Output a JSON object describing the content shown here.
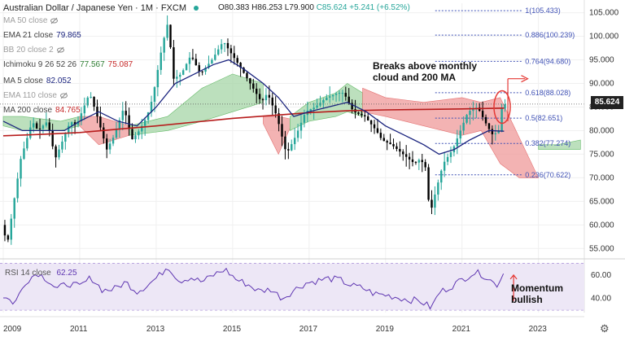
{
  "header": {
    "title": "Australian Dollar / Japanese Yen · 1M · FXCM",
    "ohlc": {
      "o": "O80.383",
      "h": "H86.253",
      "l": "L79.900",
      "c": "C85.624",
      "chg": "+5.241 (+6.52%)"
    }
  },
  "legend": [
    {
      "name": "MA 50 close",
      "value": "",
      "color": "#9e9e9e",
      "hidden": true
    },
    {
      "name": "EMA 21 close",
      "value": "79.865",
      "color": "#1a237e",
      "hidden": false
    },
    {
      "name": "BB 20 close 2",
      "value": "",
      "color": "#9e9e9e",
      "hidden": true
    },
    {
      "name": "Ichimoku 9 26 52 26",
      "value": "77.567  75.087",
      "color": "#2e7d32",
      "value_color2": "#c62828",
      "hidden": false
    },
    {
      "name": "MA 5 close",
      "value": "82.052",
      "color": "#1a237e",
      "hidden": false
    },
    {
      "name": "EMA 110 close",
      "value": "",
      "color": "#9e9e9e",
      "hidden": true
    },
    {
      "name": "MA 200 close",
      "value": "84.765",
      "color": "#c62828",
      "hidden": false
    }
  ],
  "current_price": "85.624",
  "annotations": {
    "breakout": [
      "Breaks above monthly",
      "cloud and 200 MA"
    ],
    "momentum": [
      "Momentum",
      "bullish"
    ]
  },
  "colors": {
    "up": "#26a69a",
    "down": "#000000",
    "cloud_green": "#a5d6a7",
    "cloud_red": "#ef9a9a",
    "ma200": "#b71c1c",
    "ema21": "#1a237e",
    "fib": "#3f51b5",
    "rsi": "#5e35b1",
    "annot_arrow": "#e53935"
  },
  "chart_data": [
    {
      "type": "candlestick",
      "title": "Australian Dollar / Japanese Yen · 1M · FXCM",
      "yaxis_ticks": [
        55,
        60,
        65,
        70,
        75,
        80,
        85,
        90,
        95,
        100,
        105
      ],
      "yaxis_tick_labels": [
        "55.000",
        "60.000",
        "65.000",
        "70.000",
        "75.000",
        "80.000",
        "85.000",
        "90.000",
        "95.000",
        "100.000",
        "105.000"
      ],
      "ylim": [
        53.5,
        107
      ],
      "x_start": 2009.0,
      "x_end": 2024.2,
      "xaxis_ticks": [
        2009,
        2011,
        2013,
        2015,
        2017,
        2019,
        2021,
        2023
      ],
      "price_path": [
        [
          2009.0,
          60
        ],
        [
          2009.15,
          56
        ],
        [
          2009.3,
          64
        ],
        [
          2009.5,
          74
        ],
        [
          2009.8,
          82
        ],
        [
          2009.95,
          80
        ],
        [
          2010.2,
          82
        ],
        [
          2010.4,
          74
        ],
        [
          2010.6,
          78
        ],
        [
          2010.8,
          82
        ],
        [
          2010.95,
          81
        ],
        [
          2011.1,
          84
        ],
        [
          2011.3,
          88
        ],
        [
          2011.5,
          83
        ],
        [
          2011.75,
          76
        ],
        [
          2011.95,
          79
        ],
        [
          2012.2,
          85
        ],
        [
          2012.4,
          78
        ],
        [
          2012.6,
          80
        ],
        [
          2012.8,
          83
        ],
        [
          2012.95,
          87
        ],
        [
          2013.2,
          98
        ],
        [
          2013.35,
          103
        ],
        [
          2013.5,
          91
        ],
        [
          2013.7,
          92
        ],
        [
          2013.95,
          96
        ],
        [
          2014.2,
          92
        ],
        [
          2014.5,
          95
        ],
        [
          2014.8,
          99
        ],
        [
          2014.95,
          97
        ],
        [
          2015.2,
          94
        ],
        [
          2015.5,
          90
        ],
        [
          2015.8,
          86
        ],
        [
          2015.95,
          88
        ],
        [
          2016.2,
          83
        ],
        [
          2016.45,
          75
        ],
        [
          2016.7,
          79
        ],
        [
          2016.95,
          84
        ],
        [
          2017.2,
          85
        ],
        [
          2017.5,
          87
        ],
        [
          2017.8,
          88
        ],
        [
          2017.95,
          88
        ],
        [
          2018.2,
          84
        ],
        [
          2018.5,
          83
        ],
        [
          2018.8,
          80
        ],
        [
          2018.95,
          78
        ],
        [
          2019.2,
          77
        ],
        [
          2019.5,
          75
        ],
        [
          2019.8,
          73
        ],
        [
          2019.95,
          74
        ],
        [
          2020.1,
          72
        ],
        [
          2020.2,
          62
        ],
        [
          2020.35,
          67
        ],
        [
          2020.55,
          73
        ],
        [
          2020.8,
          76
        ],
        [
          2020.95,
          79
        ],
        [
          2021.2,
          84
        ],
        [
          2021.45,
          85
        ],
        [
          2021.7,
          81
        ],
        [
          2021.85,
          79
        ],
        [
          2022.0,
          80
        ],
        [
          2022.1,
          85.6
        ]
      ],
      "series": [
        {
          "name": "MA 200",
          "values": [
            [
              2009.0,
              78.9
            ],
            [
              2010.0,
              79.2
            ],
            [
              2011.0,
              79.6
            ],
            [
              2012.0,
              80.3
            ],
            [
              2013.0,
              81.0
            ],
            [
              2014.0,
              81.8
            ],
            [
              2015.0,
              82.6
            ],
            [
              2016.0,
              83.2
            ],
            [
              2017.0,
              83.8
            ],
            [
              2018.0,
              84.2
            ],
            [
              2019.0,
              84.4
            ],
            [
              2020.0,
              84.5
            ],
            [
              2021.0,
              84.6
            ],
            [
              2022.1,
              84.765
            ]
          ]
        },
        {
          "name": "EMA 21",
          "values": [
            [
              2009.0,
              82
            ],
            [
              2009.5,
              80
            ],
            [
              2010.0,
              80
            ],
            [
              2010.6,
              80
            ],
            [
              2011.0,
              82
            ],
            [
              2011.5,
              84
            ],
            [
              2012.0,
              82
            ],
            [
              2012.5,
              81
            ],
            [
              2013.0,
              85
            ],
            [
              2013.5,
              90
            ],
            [
              2014.0,
              92
            ],
            [
              2014.5,
              94
            ],
            [
              2014.9,
              95
            ],
            [
              2015.3,
              93
            ],
            [
              2015.8,
              90
            ],
            [
              2016.2,
              87
            ],
            [
              2016.6,
              83
            ],
            [
              2017.0,
              84
            ],
            [
              2017.5,
              85
            ],
            [
              2018.0,
              86
            ],
            [
              2018.5,
              84
            ],
            [
              2019.0,
              81
            ],
            [
              2019.5,
              79
            ],
            [
              2020.0,
              77
            ],
            [
              2020.4,
              75
            ],
            [
              2020.8,
              76
            ],
            [
              2021.2,
              78
            ],
            [
              2021.7,
              80
            ],
            [
              2022.1,
              79.865
            ]
          ]
        }
      ],
      "ichimoku_cloud": [
        {
          "color": "green",
          "top": [
            [
              2009.0,
              83
            ],
            [
              2009.5,
              83
            ],
            [
              2010.5,
              82
            ],
            [
              2011.0,
              83
            ]
          ],
          "bottom": [
            [
              2009.0,
              81
            ],
            [
              2009.5,
              80
            ],
            [
              2010.5,
              80
            ],
            [
              2011.0,
              81
            ]
          ]
        },
        {
          "color": "red",
          "top": [
            [
              2011.0,
              83
            ],
            [
              2011.5,
              83
            ],
            [
              2012.3,
              81
            ]
          ],
          "bottom": [
            [
              2011.0,
              81
            ],
            [
              2011.5,
              77
            ],
            [
              2012.3,
              79
            ]
          ]
        },
        {
          "color": "green",
          "top": [
            [
              2012.3,
              81
            ],
            [
              2013.3,
              83
            ],
            [
              2014.2,
              89
            ],
            [
              2015.0,
              92
            ],
            [
              2015.8,
              90
            ]
          ],
          "bottom": [
            [
              2012.3,
              79
            ],
            [
              2013.3,
              80
            ],
            [
              2014.2,
              82
            ],
            [
              2015.0,
              84
            ],
            [
              2015.8,
              86
            ]
          ]
        },
        {
          "color": "red",
          "top": [
            [
              2015.8,
              83
            ],
            [
              2016.2,
              83
            ],
            [
              2016.5,
              82.5
            ]
          ],
          "bottom": [
            [
              2015.8,
              81.5
            ],
            [
              2016.2,
              75
            ],
            [
              2016.5,
              80.5
            ]
          ]
        },
        {
          "color": "green",
          "top": [
            [
              2016.5,
              83
            ],
            [
              2017.0,
              86
            ],
            [
              2017.7,
              88
            ],
            [
              2018.0,
              90
            ],
            [
              2018.4,
              88
            ]
          ],
          "bottom": [
            [
              2016.5,
              80
            ],
            [
              2017.0,
              82
            ],
            [
              2017.7,
              83
            ],
            [
              2018.0,
              84
            ],
            [
              2018.4,
              83
            ]
          ]
        },
        {
          "color": "red",
          "top": [
            [
              2018.4,
              89
            ],
            [
              2019.0,
              87
            ],
            [
              2020.0,
              86
            ],
            [
              2021.0,
              87
            ],
            [
              2021.5,
              86
            ],
            [
              2022.0,
              87
            ]
          ],
          "bottom": [
            [
              2018.4,
              84
            ],
            [
              2019.0,
              83
            ],
            [
              2020.0,
              81
            ],
            [
              2021.0,
              79
            ],
            [
              2021.5,
              80
            ],
            [
              2022.0,
              73
            ],
            [
              2022.5,
              70
            ],
            [
              2023.0,
              70
            ]
          ]
        },
        {
          "color": "green",
          "top": [
            [
              2023.0,
              77
            ],
            [
              2023.5,
              77
            ],
            [
              2024.1,
              78
            ]
          ],
          "bottom": [
            [
              2023.0,
              76
            ],
            [
              2023.5,
              76
            ],
            [
              2024.1,
              76
            ]
          ]
        }
      ],
      "fib_levels": [
        {
          "ratio": "1",
          "label": "1(105.433)",
          "value": 105.433
        },
        {
          "ratio": "0.886",
          "label": "0.886(100.239)",
          "value": 100.239
        },
        {
          "ratio": "0.764",
          "label": "0.764(94.680)",
          "value": 94.68
        },
        {
          "ratio": "0.618",
          "label": "0.618(88.028)",
          "value": 88.028
        },
        {
          "ratio": "0.5",
          "label": "0.5(82.651)",
          "value": 82.651
        },
        {
          "ratio": "0.382",
          "label": "0.382(77.274)",
          "value": 77.274
        },
        {
          "ratio": "0.236",
          "label": "0.236(70.622)",
          "value": 70.622
        }
      ]
    },
    {
      "type": "line",
      "title": "RSI 14 close",
      "value_label": "62.25",
      "yaxis_ticks": [
        40,
        60
      ],
      "yaxis_tick_labels": [
        "40.00",
        "60.00"
      ],
      "ylim": [
        28,
        71
      ],
      "band": [
        30,
        70
      ],
      "series": [
        {
          "name": "RSI 14",
          "values": [
            [
              2009.0,
              42
            ],
            [
              2009.3,
              36
            ],
            [
              2009.6,
              55
            ],
            [
              2009.9,
              62
            ],
            [
              2010.2,
              55
            ],
            [
              2010.4,
              48
            ],
            [
              2010.7,
              53
            ],
            [
              2011.0,
              50
            ],
            [
              2011.3,
              58
            ],
            [
              2011.6,
              47
            ],
            [
              2011.9,
              48
            ],
            [
              2012.2,
              54
            ],
            [
              2012.5,
              46
            ],
            [
              2012.8,
              52
            ],
            [
              2013.1,
              60
            ],
            [
              2013.3,
              68
            ],
            [
              2013.6,
              55
            ],
            [
              2013.9,
              58
            ],
            [
              2014.2,
              54
            ],
            [
              2014.5,
              60
            ],
            [
              2014.8,
              65
            ],
            [
              2015.1,
              56
            ],
            [
              2015.4,
              52
            ],
            [
              2015.7,
              46
            ],
            [
              2016.0,
              48
            ],
            [
              2016.3,
              40
            ],
            [
              2016.6,
              47
            ],
            [
              2016.9,
              53
            ],
            [
              2017.2,
              55
            ],
            [
              2017.5,
              57
            ],
            [
              2017.8,
              56
            ],
            [
              2018.1,
              51
            ],
            [
              2018.4,
              49
            ],
            [
              2018.7,
              44
            ],
            [
              2019.0,
              43
            ],
            [
              2019.3,
              41
            ],
            [
              2019.6,
              39
            ],
            [
              2019.9,
              38
            ],
            [
              2020.2,
              32
            ],
            [
              2020.4,
              45
            ],
            [
              2020.7,
              50
            ],
            [
              2021.0,
              56
            ],
            [
              2021.3,
              62
            ],
            [
              2021.5,
              61
            ],
            [
              2021.7,
              57
            ],
            [
              2021.9,
              51
            ],
            [
              2022.1,
              62.25
            ]
          ]
        }
      ]
    }
  ],
  "x_axis_labels": [
    "2009",
    "2011",
    "2013",
    "2015",
    "2017",
    "2019",
    "2021",
    "2023"
  ]
}
